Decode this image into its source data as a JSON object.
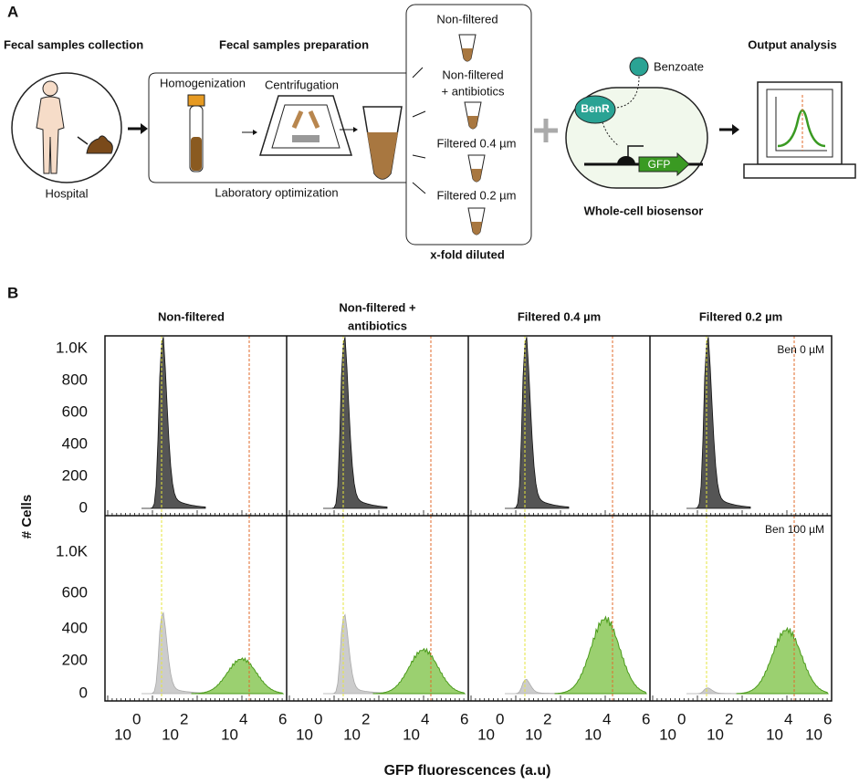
{
  "panel_a": {
    "label": "A",
    "collection": {
      "title": "Fecal samples collection",
      "place": "Hospital"
    },
    "preparation": {
      "title": "Fecal samples preparation",
      "steps": [
        "Homogenization",
        "Centrifugation"
      ],
      "footer": "Laboratory optimization"
    },
    "conditions": {
      "items": [
        [
          "Non-filtered"
        ],
        [
          "Non-filtered",
          "+ antibiotics"
        ],
        [
          "Filtered 0.4 µm"
        ],
        [
          "Filtered 0.2 µm"
        ]
      ],
      "footer": "x-fold diluted"
    },
    "biosensor": {
      "inducer": "Benzoate",
      "regulator": "BenR",
      "reporter": "GFP",
      "title": "Whole-cell biosensor"
    },
    "output": {
      "title": "Output analysis"
    }
  },
  "panel_b": {
    "label": "B",
    "columns": [
      [
        "Non-filtered"
      ],
      [
        "Non-filtered +",
        "antibiotics"
      ],
      [
        "Filtered 0.4 µm"
      ],
      [
        "Filtered 0.2 µm"
      ]
    ],
    "rows": [
      {
        "label": "Ben 0 µM",
        "yticks": [
          "1.0K",
          "800",
          "600",
          "400",
          "200",
          "0"
        ]
      },
      {
        "label": "Ben 100 µM",
        "yticks": [
          "1.0K",
          "600",
          "400",
          "200",
          "0"
        ]
      }
    ],
    "xticks": [
      {
        "base": "10",
        "exponent": "0"
      },
      {
        "base": "10",
        "exponent": "2"
      },
      {
        "base": "10",
        "exponent": "4"
      },
      {
        "base": "10",
        "exponent": "6"
      }
    ],
    "ylabel": "# Cells",
    "xlabel": "GFP fluorescences (a.u)"
  }
}
